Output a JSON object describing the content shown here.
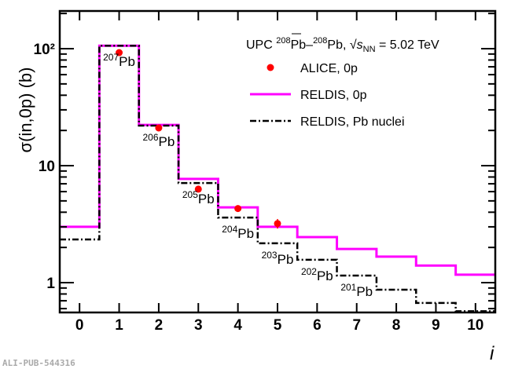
{
  "chart_data": {
    "type": "line",
    "title": "",
    "xlabel": "i",
    "ylabel": "σ(in,0p) (b)",
    "xlim": [
      -0.5,
      10.5
    ],
    "ylim": [
      0.556,
      210
    ],
    "yscale": "log",
    "x_ticks": [
      "0",
      "1",
      "2",
      "3",
      "4",
      "5",
      "6",
      "7",
      "8",
      "9",
      "10"
    ],
    "y_ticks": [
      {
        "value": 1,
        "label": "1"
      },
      {
        "value": 10,
        "label": "10"
      },
      {
        "value": 100,
        "label": "10²"
      }
    ],
    "legend": {
      "position": "top-right",
      "header": {
        "prefix": "UPC ",
        "sup1": "208",
        "mid": "Pb–",
        "sup2": "208",
        "post": "Pb, ",
        "sqrt": "s",
        "sub": "NN",
        "tail": " = 5.02 TeV"
      },
      "entries": [
        "ALICE, 0p",
        "RELDIS, 0p",
        "RELDIS, Pb nuclei"
      ]
    },
    "x": [
      0,
      1,
      2,
      3,
      4,
      5,
      6,
      7,
      8,
      9,
      10
    ],
    "series": [
      {
        "name": "RELDIS, 0p",
        "style": "step",
        "color": "#ff00ff",
        "values": [
          3.0,
          106,
          22.3,
          7.7,
          4.4,
          3.0,
          2.45,
          1.94,
          1.67,
          1.4,
          1.17
        ]
      },
      {
        "name": "RELDIS, Pb nuclei",
        "style": "step-dashdot",
        "color": "#000000",
        "values": [
          2.34,
          106,
          22,
          7.1,
          3.6,
          2.17,
          1.57,
          1.15,
          0.87,
          0.67,
          0.57
        ]
      },
      {
        "name": "ALICE, 0p",
        "style": "points",
        "color": "#ff0000",
        "x": [
          1,
          2,
          3,
          4,
          5
        ],
        "values": [
          92.5,
          21,
          6.3,
          4.3,
          3.2
        ],
        "errors": [
          0,
          0,
          0,
          0,
          0.3
        ]
      }
    ],
    "annotations": [
      {
        "bin": 1,
        "mass": "207",
        "el": "Pb"
      },
      {
        "bin": 2,
        "mass": "206",
        "el": "Pb"
      },
      {
        "bin": 3,
        "mass": "205",
        "el": "Pb"
      },
      {
        "bin": 4,
        "mass": "204",
        "el": "Pb"
      },
      {
        "bin": 5,
        "mass": "203",
        "el": "Pb"
      },
      {
        "bin": 6,
        "mass": "202",
        "el": "Pb"
      },
      {
        "bin": 7,
        "mass": "201",
        "el": "Pb"
      }
    ]
  },
  "footer": "ALI-PUB-544316"
}
